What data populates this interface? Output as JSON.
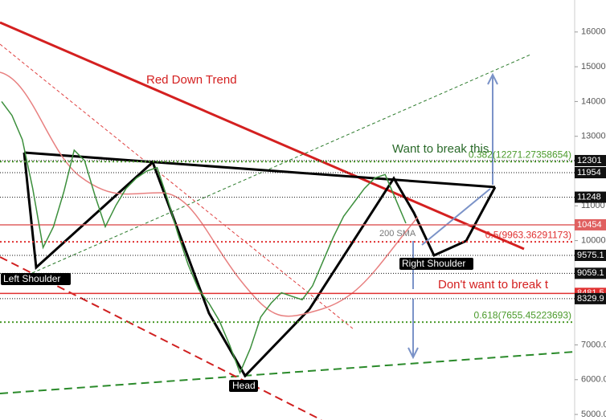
{
  "chart_data": {
    "type": "line",
    "categories": [
      null,
      null,
      null,
      null,
      null,
      null,
      null,
      null,
      null,
      null,
      null,
      null,
      null,
      null,
      null,
      null,
      null,
      null,
      null,
      null,
      null,
      null,
      null,
      null,
      null,
      null,
      null,
      null,
      null,
      null,
      null,
      null,
      null,
      null,
      null,
      null,
      null,
      null,
      null,
      null
    ],
    "values": [
      14000,
      13600,
      12900,
      11500,
      9800,
      10400,
      11400,
      12600,
      12300,
      11300,
      10400,
      11000,
      11500,
      11800,
      12000,
      12100,
      11200,
      10200,
      9300,
      8600,
      8200,
      7700,
      7000,
      6200,
      6900,
      7800,
      8200,
      8500,
      8400,
      8300,
      8700,
      9400,
      10100,
      10700,
      11100,
      11500,
      11800,
      11900,
      11200,
      10500
    ],
    "color": "#3c8f3c",
    "ylim": [
      4840,
      16920
    ],
    "yticks": [
      16000,
      15000,
      14000,
      13000,
      11000,
      10000,
      {
        "value": 7000,
        "label": "7000.00"
      },
      {
        "value": 6000,
        "label": "6000.00"
      },
      {
        "value": 5000,
        "label": "5000.00"
      }
    ],
    "price_levels": [
      12301,
      11954,
      11248,
      10454,
      9575.1,
      9059.1,
      8481.5,
      8329.9
    ],
    "price_level_colors": [
      "#111111",
      "#111111",
      "#111111",
      "#e06060",
      "#111111",
      "#111111",
      "#e03030",
      "#111111"
    ],
    "fib_levels": [
      {
        "value": 12271.27358654,
        "label": "0.382(12271.27358654)"
      },
      {
        "value": 9963.36291173,
        "label": "0.5(9963.36291173)"
      },
      {
        "value": 7655.45223693,
        "label": "0.618(7655.45223693)"
      }
    ],
    "fib_colors": [
      "#4a9a2a",
      "#e03030",
      "#4a9a2a"
    ],
    "annotations": [
      "Red Down Trend",
      "Want to break this",
      "200 SMA",
      "Right Shoulder",
      "Don't want to break t",
      "Left Shoulder",
      "Head"
    ]
  }
}
